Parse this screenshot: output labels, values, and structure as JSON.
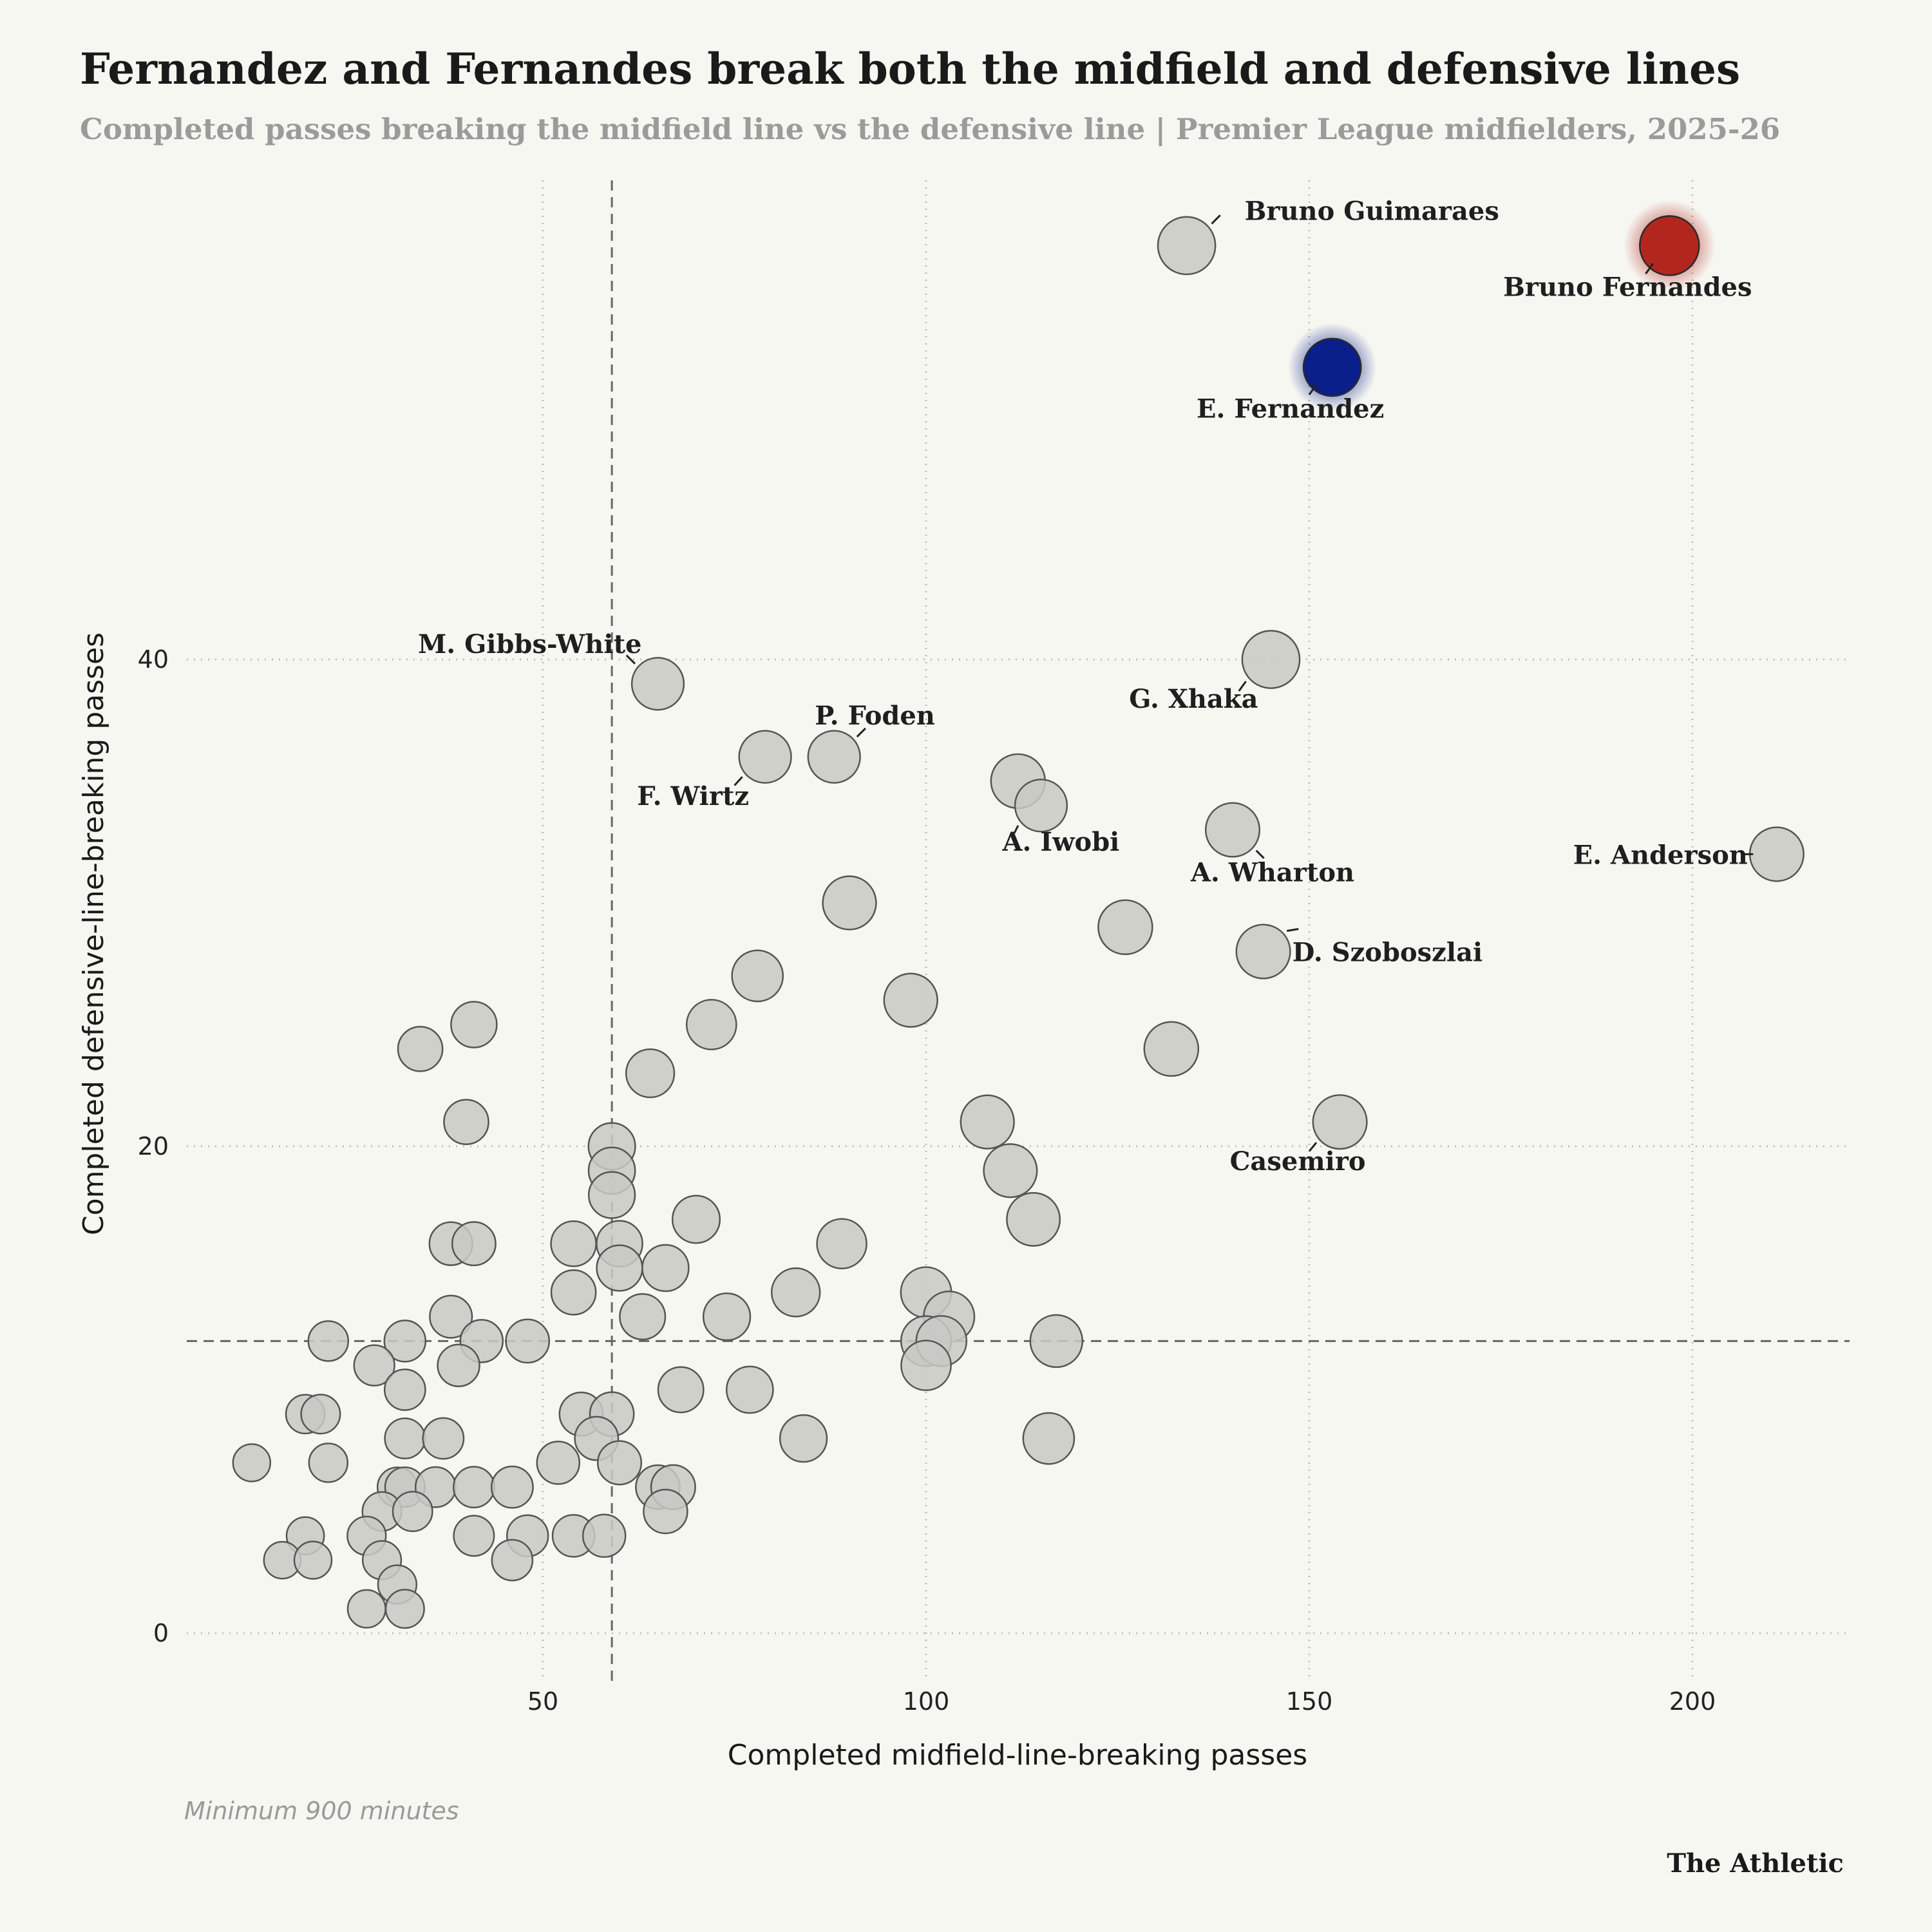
{
  "header": {
    "title": "Fernandez and Fernandes break both the midfield and defensive lines",
    "subtitle": "Completed passes breaking the midfield line vs the defensive line | Premier League midfielders, 2025-26"
  },
  "footer": {
    "note": "Minimum 900 minutes",
    "brand": "The Athletic"
  },
  "colors": {
    "background": "#f7f7f2",
    "point_fill": "#c9c9c4",
    "point_stroke": "#555555",
    "highlight_red": "#b3261e",
    "highlight_blue": "#0a1f8a",
    "grid": "#bdbdbd",
    "reference_line": "#666666"
  },
  "chart_data": {
    "type": "scatter",
    "title": "Fernandez and Fernandes break both the midfield and defensive lines",
    "subtitle": "Completed passes breaking the midfield line vs the defensive line | Premier League midfielders, 2025-26",
    "xlabel": "Completed midfield-line-breaking passes",
    "ylabel": "Completed defensive-line-breaking passes",
    "xlim": [
      0,
      220
    ],
    "ylim": [
      -1.5,
      60
    ],
    "xticks": [
      50,
      100,
      150,
      200
    ],
    "yticks": [
      0,
      20,
      40
    ],
    "grid": "dotted, at ticks",
    "reference_lines": {
      "x": 59,
      "y": 12
    },
    "highlighted": [
      {
        "name": "Bruno Fernandes",
        "x": 197,
        "y": 57,
        "color": "#b3261e"
      },
      {
        "name": "E. Fernandez",
        "x": 153,
        "y": 52,
        "color": "#0a1f8a"
      }
    ],
    "labeled_points": [
      {
        "name": "Bruno Guimaraes",
        "x": 134,
        "y": 57
      },
      {
        "name": "G. Xhaka",
        "x": 145,
        "y": 40
      },
      {
        "name": "M. Gibbs-White",
        "x": 65,
        "y": 39
      },
      {
        "name": "F. Wirtz",
        "x": 79,
        "y": 36
      },
      {
        "name": "P. Foden",
        "x": 88,
        "y": 36
      },
      {
        "name": "A. Iwobi",
        "x": 115,
        "y": 34
      },
      {
        "name": "A. Wharton",
        "x": 140,
        "y": 33
      },
      {
        "name": "E. Anderson",
        "x": 211,
        "y": 32
      },
      {
        "name": "D. Szoboszlai",
        "x": 144,
        "y": 28
      },
      {
        "name": "Casemiro",
        "x": 154,
        "y": 21
      }
    ],
    "points": [
      [
        112,
        35
      ],
      [
        90,
        30
      ],
      [
        126,
        29
      ],
      [
        78,
        27
      ],
      [
        98,
        26
      ],
      [
        72,
        25
      ],
      [
        41,
        25
      ],
      [
        132,
        24
      ],
      [
        34,
        24
      ],
      [
        64,
        23
      ],
      [
        108,
        21
      ],
      [
        40,
        21
      ],
      [
        59,
        20
      ],
      [
        111,
        19
      ],
      [
        59,
        19
      ],
      [
        59,
        18
      ],
      [
        70,
        17
      ],
      [
        114,
        17
      ],
      [
        38,
        16
      ],
      [
        41,
        16
      ],
      [
        54,
        16
      ],
      [
        60,
        16
      ],
      [
        89,
        16
      ],
      [
        60,
        15
      ],
      [
        66,
        15
      ],
      [
        54,
        14
      ],
      [
        83,
        14
      ],
      [
        100,
        14
      ],
      [
        38,
        13
      ],
      [
        63,
        13
      ],
      [
        74,
        13
      ],
      [
        103,
        13
      ],
      [
        22,
        12
      ],
      [
        32,
        12
      ],
      [
        42,
        12
      ],
      [
        48,
        12
      ],
      [
        100,
        12
      ],
      [
        102,
        12
      ],
      [
        117,
        12
      ],
      [
        28,
        11
      ],
      [
        39,
        11
      ],
      [
        100,
        11
      ],
      [
        32,
        10
      ],
      [
        68,
        10
      ],
      [
        77,
        10
      ],
      [
        19,
        9
      ],
      [
        21,
        9
      ],
      [
        55,
        9
      ],
      [
        59,
        9
      ],
      [
        32,
        8
      ],
      [
        37,
        8
      ],
      [
        57,
        8
      ],
      [
        84,
        8
      ],
      [
        116,
        8
      ],
      [
        12,
        7
      ],
      [
        22,
        7
      ],
      [
        52,
        7
      ],
      [
        60,
        7
      ],
      [
        31,
        6
      ],
      [
        32,
        6
      ],
      [
        36,
        6
      ],
      [
        41,
        6
      ],
      [
        46,
        6
      ],
      [
        65,
        6
      ],
      [
        67,
        6
      ],
      [
        29,
        5
      ],
      [
        33,
        5
      ],
      [
        66,
        5
      ],
      [
        19,
        4
      ],
      [
        27,
        4
      ],
      [
        41,
        4
      ],
      [
        48,
        4
      ],
      [
        54,
        4
      ],
      [
        58,
        4
      ],
      [
        16,
        3
      ],
      [
        20,
        3
      ],
      [
        29,
        3
      ],
      [
        46,
        3
      ],
      [
        31,
        2
      ],
      [
        27,
        1
      ],
      [
        32,
        1
      ]
    ],
    "sizes": {
      "Bruno Fernandes": 20,
      "E. Fernandez": 19,
      "Bruno Guimaraes": 19,
      "G. Xhaka": 19,
      "M. Gibbs-White": 16,
      "F. Wirtz": 16,
      "P. Foden": 16,
      "A. Iwobi": 16,
      "A. Wharton": 17,
      "E. Anderson": 17,
      "D. Szoboszlai": 17,
      "Casemiro": 17
    }
  }
}
